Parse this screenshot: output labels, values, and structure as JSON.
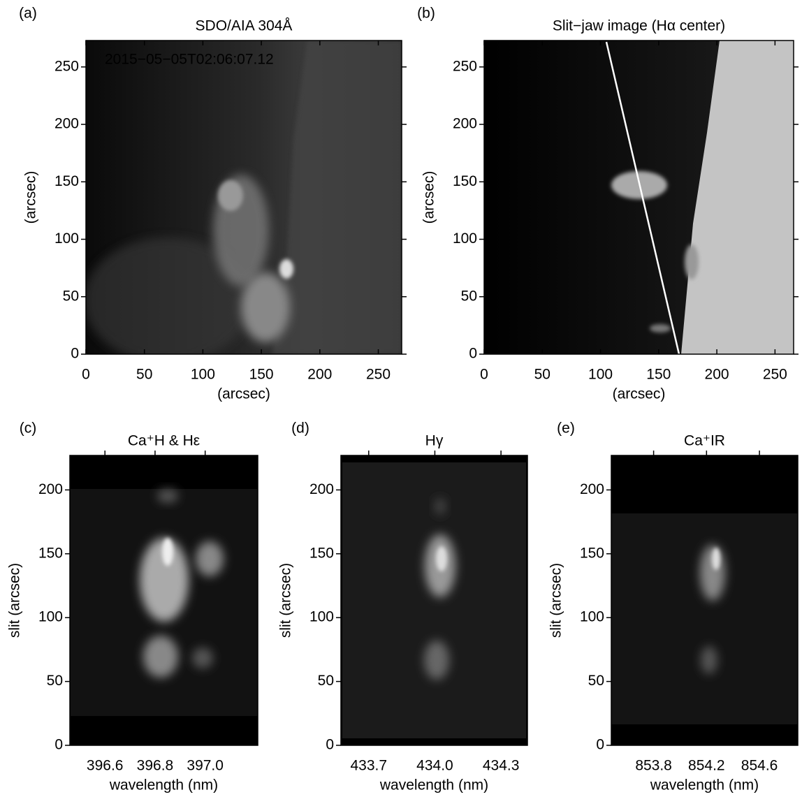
{
  "chart_data": [
    {
      "type": "image",
      "panel": "(a)",
      "title": "SDO/AIA 304Å",
      "annotation": "2015−05−05T02:06:07.12",
      "xlabel": "(arcsec)",
      "ylabel": "(arcsec)",
      "xlim": [
        0,
        270
      ],
      "ylim": [
        0,
        273
      ],
      "xticks": [
        0,
        50,
        100,
        150,
        200,
        250
      ],
      "yticks": [
        0,
        50,
        100,
        150,
        200,
        250
      ]
    },
    {
      "type": "image",
      "panel": "(b)",
      "title": "Slit−jaw image (Hα center)",
      "xlabel": "(arcsec)",
      "ylabel": "(arcsec)",
      "xlim": [
        0,
        266
      ],
      "ylim": [
        0,
        273
      ],
      "xticks": [
        0,
        50,
        100,
        150,
        200,
        250
      ],
      "yticks": [
        0,
        50,
        100,
        150,
        200,
        250
      ]
    },
    {
      "type": "image",
      "panel": "(c)",
      "title": "Ca⁺H & Hε",
      "xlabel": "wavelength (nm)",
      "ylabel": "slit (arcsec)",
      "xlim": [
        396.46,
        397.21
      ],
      "ylim": [
        0,
        227
      ],
      "xticks": [
        396.6,
        396.8,
        {
          "value": 397,
          "label": "397.0"
        }
      ],
      "yticks": [
        0,
        50,
        100,
        150,
        200
      ]
    },
    {
      "type": "image",
      "panel": "(d)",
      "title": "Hγ",
      "xlabel": "wavelength (nm)",
      "ylabel": "slit (arcsec)",
      "xlim": [
        433.574,
        434.42
      ],
      "ylim": [
        0,
        227
      ],
      "xticks": [
        433.7,
        {
          "value": 434,
          "label": "434.0"
        },
        434.3
      ],
      "yticks": [
        0,
        50,
        100,
        150,
        200
      ]
    },
    {
      "type": "image",
      "panel": "(e)",
      "title": "Ca⁺IR",
      "xlabel": "wavelength (nm)",
      "ylabel": "slit (arcsec)",
      "xlim": [
        853.48,
        854.89
      ],
      "ylim": [
        0,
        227
      ],
      "xticks": [
        853.8,
        854.2,
        854.6
      ],
      "yticks": [
        0,
        50,
        100,
        150,
        200
      ]
    }
  ]
}
